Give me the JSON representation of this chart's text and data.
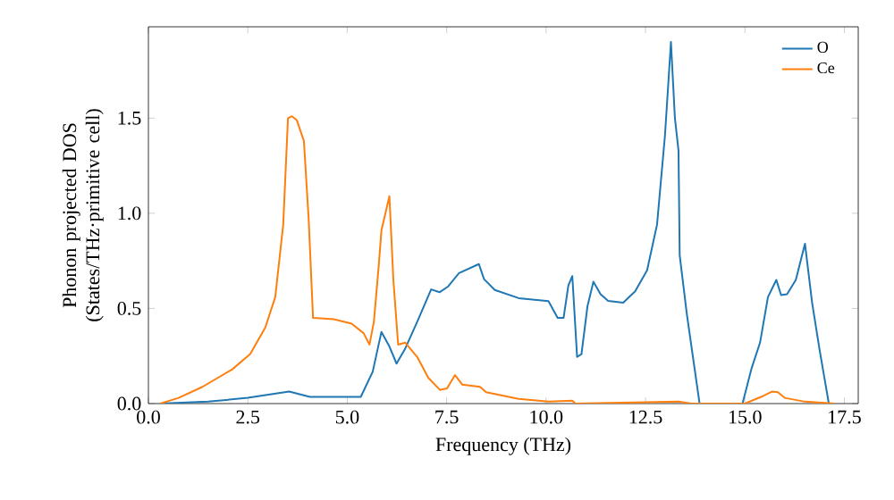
{
  "chart_data": {
    "type": "line",
    "xlabel": "Frequency (THz)",
    "ylabel": "Phonon projected DOS (States/THz·primitive cell)",
    "xlim": [
      0,
      17.85
    ],
    "ylim": [
      0,
      1.98
    ],
    "xticks": [
      {
        "value": 0,
        "label": "0.0"
      },
      {
        "value": 2.5,
        "label": "2.5"
      },
      {
        "value": 5,
        "label": "5.0"
      },
      {
        "value": 7.5,
        "label": "7.5"
      },
      {
        "value": 10,
        "label": "10.0"
      },
      {
        "value": 12.5,
        "label": "12.5"
      },
      {
        "value": 15,
        "label": "15.0"
      },
      {
        "value": 17.5,
        "label": "17.5"
      }
    ],
    "yticks": [
      {
        "value": 0,
        "label": "0.0"
      },
      {
        "value": 0.5,
        "label": "0.5"
      },
      {
        "value": 1,
        "label": "1.0"
      },
      {
        "value": 1.5,
        "label": "1.5"
      }
    ],
    "legend": "top right",
    "grid": false,
    "marker": "none",
    "line_style": "solid",
    "series": [
      {
        "name": "O",
        "color": "#1f77b4",
        "x": [
          0.3,
          1.5,
          2.5,
          3.54,
          4.06,
          5.34,
          5.64,
          5.86,
          6.06,
          6.24,
          6.46,
          6.76,
          7.11,
          7.32,
          7.54,
          7.81,
          8.31,
          8.44,
          8.71,
          9.31,
          10.06,
          10.29,
          10.44,
          10.56,
          10.66,
          10.78,
          10.89,
          11.04,
          11.19,
          11.37,
          11.56,
          11.94,
          12.24,
          12.54,
          12.79,
          12.99,
          13.14,
          13.24,
          13.33,
          13.36,
          13.54,
          13.86,
          14.94,
          15.16,
          15.38,
          15.58,
          15.79,
          15.91,
          16.06,
          16.28,
          16.51,
          16.69,
          16.88,
          17.11
        ],
        "values": [
          0,
          0.01,
          0.03,
          0.063,
          0.035,
          0.035,
          0.167,
          0.377,
          0.3,
          0.21,
          0.29,
          0.43,
          0.6,
          0.585,
          0.616,
          0.686,
          0.733,
          0.654,
          0.597,
          0.554,
          0.538,
          0.45,
          0.45,
          0.62,
          0.67,
          0.245,
          0.26,
          0.51,
          0.64,
          0.575,
          0.54,
          0.53,
          0.59,
          0.7,
          0.94,
          1.41,
          1.9,
          1.5,
          1.33,
          0.78,
          0.47,
          0,
          0,
          0.18,
          0.32,
          0.56,
          0.65,
          0.57,
          0.575,
          0.65,
          0.84,
          0.53,
          0.28,
          0
        ]
      },
      {
        "name": "Ce",
        "color": "#ff7f0e",
        "x": [
          0.3,
          0.76,
          1.36,
          2.11,
          2.56,
          2.94,
          3.19,
          3.39,
          3.51,
          3.61,
          3.73,
          3.91,
          4.03,
          4.14,
          4.66,
          5.11,
          5.41,
          5.56,
          5.67,
          5.79,
          5.86,
          6.06,
          6.16,
          6.28,
          6.46,
          6.76,
          7.04,
          7.33,
          7.51,
          7.71,
          7.89,
          8.34,
          8.49,
          9.31,
          10.06,
          10.66,
          10.74,
          13.36,
          13.66,
          15.0,
          15.46,
          15.68,
          15.83,
          16.0,
          16.51,
          17.26
        ],
        "values": [
          0,
          0.03,
          0.088,
          0.18,
          0.26,
          0.4,
          0.56,
          0.94,
          1.5,
          1.51,
          1.49,
          1.38,
          0.97,
          0.45,
          0.443,
          0.42,
          0.37,
          0.31,
          0.43,
          0.72,
          0.91,
          1.09,
          0.65,
          0.31,
          0.32,
          0.245,
          0.135,
          0.072,
          0.08,
          0.15,
          0.1,
          0.088,
          0.06,
          0.025,
          0.01,
          0.015,
          0,
          0.01,
          0,
          0,
          0.04,
          0.063,
          0.06,
          0.03,
          0.01,
          0
        ]
      }
    ]
  }
}
